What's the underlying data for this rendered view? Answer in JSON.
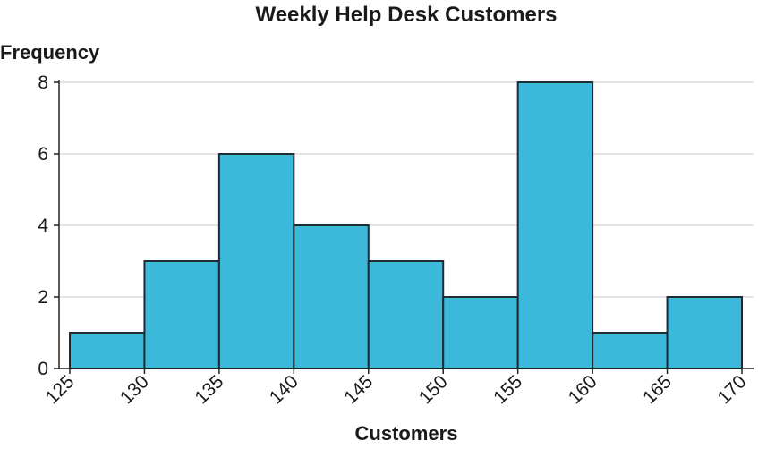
{
  "chart_data": {
    "type": "bar",
    "title": "Weekly Help Desk Customers",
    "xlabel": "Customers",
    "ylabel": "Frequency",
    "bin_edges": [
      125,
      130,
      135,
      140,
      145,
      150,
      155,
      160,
      165,
      170
    ],
    "x_ticks": [
      "125",
      "130",
      "135",
      "140",
      "145",
      "150",
      "155",
      "160",
      "165",
      "170"
    ],
    "values": [
      1,
      3,
      6,
      4,
      3,
      2,
      8,
      1,
      2
    ],
    "ylim": [
      0,
      8
    ],
    "y_ticks": [
      "0",
      "2",
      "4",
      "6",
      "8"
    ],
    "grid": true,
    "bar_color": "#3cb8db"
  }
}
